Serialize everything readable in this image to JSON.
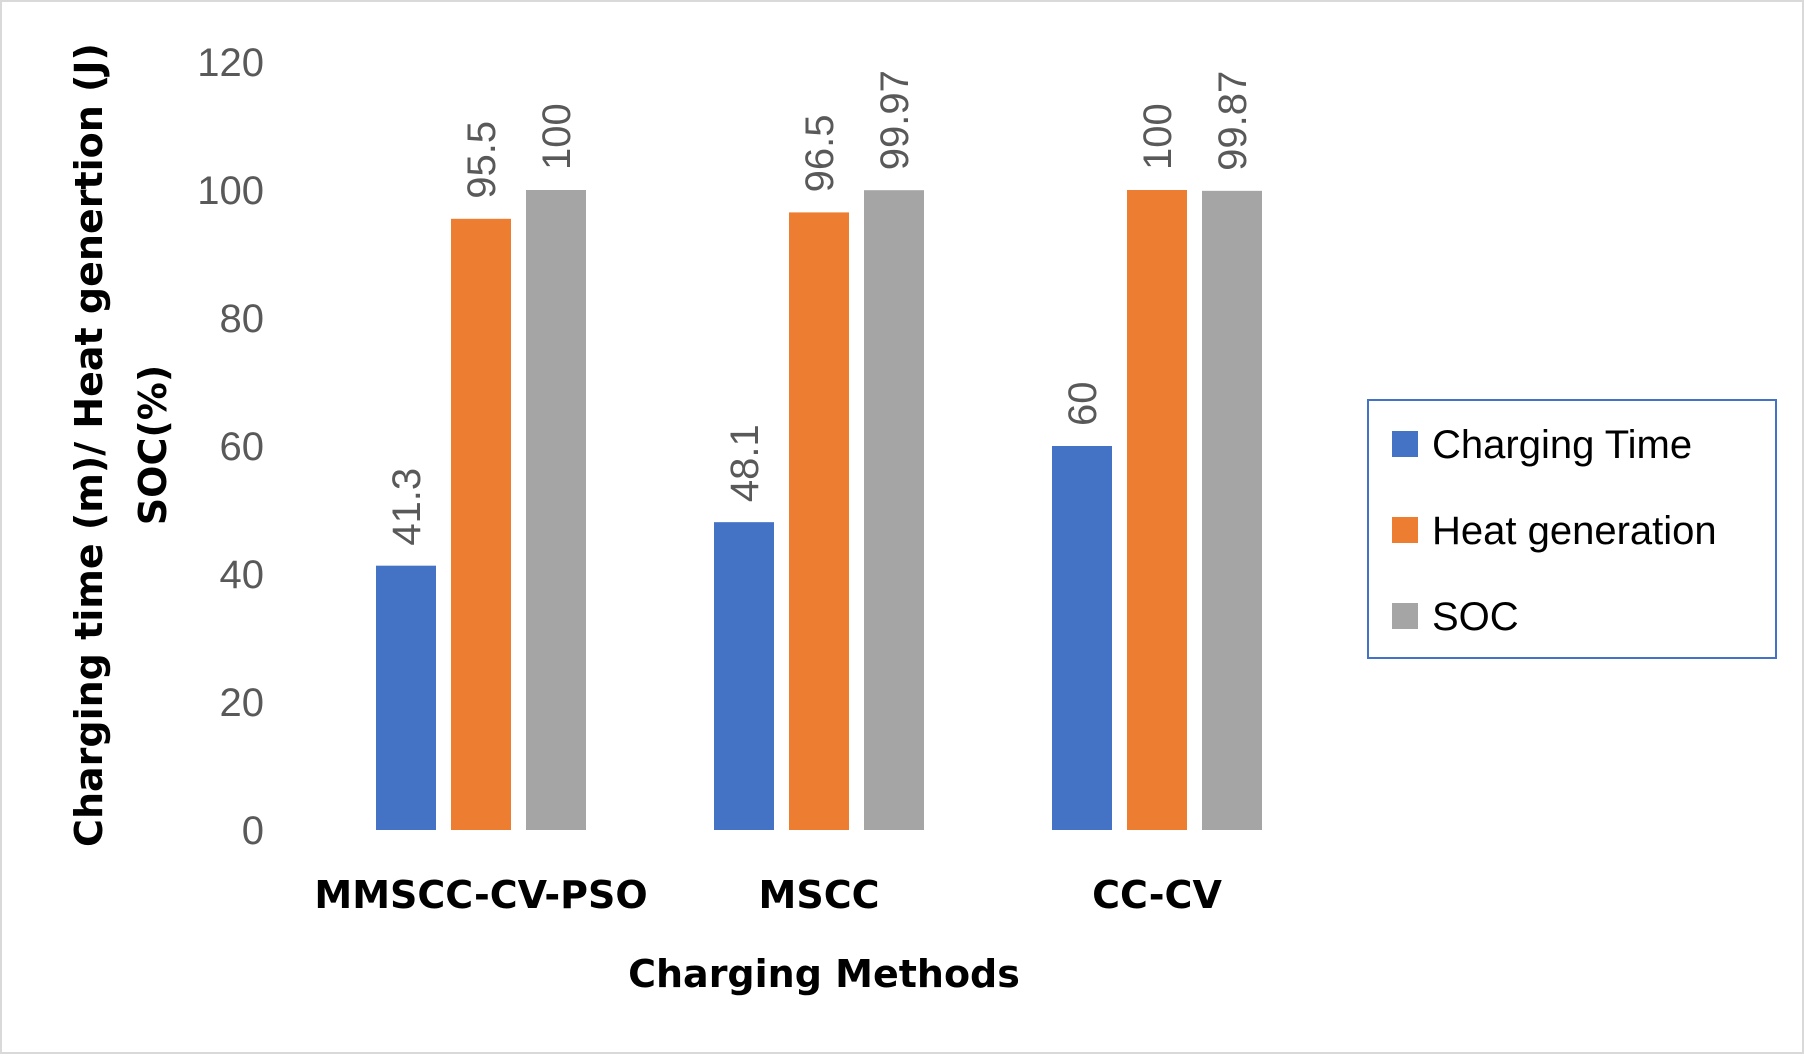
{
  "chart_data": {
    "type": "bar",
    "categories": [
      "MMSCC-CV-PSO",
      "MSCC",
      "CC-CV"
    ],
    "series": [
      {
        "name": "Charging Time",
        "values": [
          41.3,
          48.1,
          60
        ],
        "labels": [
          "41.3",
          "48.1",
          "60"
        ],
        "color": "#4472c4"
      },
      {
        "name": "Heat generation",
        "values": [
          95.5,
          96.5,
          100
        ],
        "labels": [
          "95.5",
          "96.5",
          "100"
        ],
        "color": "#ed7d31"
      },
      {
        "name": "SOC",
        "values": [
          100,
          99.97,
          99.87
        ],
        "labels": [
          "100",
          "99.97",
          "99.87"
        ],
        "color": "#a5a5a5"
      }
    ],
    "title": "",
    "xlabel": "Charging Methods",
    "ylabel_lines": [
      "Charging time (m)/ Heat genertion (J)",
      "SOC(%)"
    ],
    "ylim": [
      0,
      120
    ],
    "yticks": [
      "0",
      "20",
      "40",
      "60",
      "80",
      "100",
      "120"
    ],
    "grid": false,
    "legend_position": "right",
    "legend_border_color": "#4472c4"
  }
}
